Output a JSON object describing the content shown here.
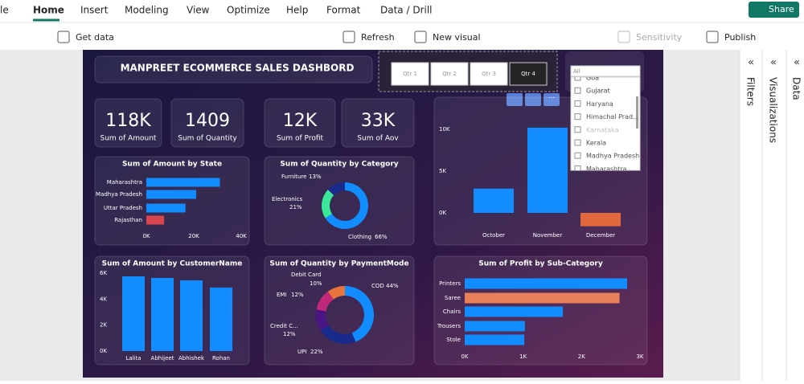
{
  "ribbon": {
    "tabs": [
      "le",
      "Home",
      "Insert",
      "Modeling",
      "View",
      "Optimize",
      "Help",
      "Format",
      "Data / Drill"
    ],
    "share": "Share",
    "commands": [
      "Get data",
      "Refresh",
      "New visual",
      "Sensitivity",
      "Publish"
    ]
  },
  "panes": [
    "Filters",
    "Visualizations",
    "Data"
  ],
  "dashboard": {
    "title": "MANPREET ECOMMERCE SALES DASHBORD",
    "quarter_slicer": [
      "Qtr 1",
      "Qtr 2",
      "Qtr 3",
      "Qtr 4"
    ],
    "state_slicer": {
      "selection": "All",
      "items": [
        "Goa",
        "Gujarat",
        "Haryana",
        "Himachal Prad...",
        "Karnataka",
        "Kerala",
        "Madhya Pradesh",
        "Maharashtra"
      ]
    },
    "cards": [
      {
        "value": "118K",
        "label": "Sum of Amount"
      },
      {
        "value": "1409",
        "label": "Sum of Quantity"
      },
      {
        "value": "12K",
        "label": "Sum of Profit"
      },
      {
        "value": "33K",
        "label": "Sum of Aov"
      }
    ],
    "amount_by_state": {
      "type": "hbar",
      "title": "Sum of Amount by State",
      "categories": [
        "Maharashtra",
        "Madhya Pradesh",
        "Uttar Pradesh",
        "Rajasthan"
      ],
      "values": [
        31000,
        21000,
        16500,
        7500
      ],
      "colors": [
        "#118dff",
        "#118dff",
        "#118dff",
        "#d64550"
      ],
      "xlim": [
        0,
        40000
      ],
      "xticks": [
        {
          "value": 0,
          "label": "0K"
        },
        {
          "value": 20000,
          "label": "20K"
        },
        {
          "value": 40000,
          "label": "40K"
        }
      ]
    },
    "quantity_by_category": {
      "type": "donut",
      "title": "Sum of Quantity by Category",
      "categories": [
        "Clothing",
        "Electronics",
        "Furniture"
      ],
      "values": [
        66,
        21,
        13
      ],
      "value_labels": [
        "66%",
        "21%",
        "13%"
      ],
      "colors": [
        "#118dff",
        "#3be89a",
        "#1a2a8c"
      ]
    },
    "profit_by_month": {
      "type": "vbar",
      "categories": [
        "October",
        "November",
        "December"
      ],
      "values": [
        2900,
        10200,
        -1600
      ],
      "colors": [
        "#118dff",
        "#118dff",
        "#e0683c"
      ],
      "ylim": [
        -2000,
        11000
      ],
      "yticks": [
        {
          "value": 0,
          "label": "0K"
        },
        {
          "value": 5000,
          "label": "5K"
        },
        {
          "value": 10000,
          "label": "10K"
        }
      ]
    },
    "amount_by_customer": {
      "type": "vbar",
      "title": "Sum of Amount by CustomerName",
      "categories": [
        "Lalita",
        "Abhijeet",
        "Abhishek",
        "Rohan"
      ],
      "values": [
        5750,
        5630,
        5440,
        4890
      ],
      "colors": [
        "#118dff",
        "#118dff",
        "#118dff",
        "#118dff"
      ],
      "ylim": [
        0,
        6000
      ],
      "yticks": [
        {
          "value": 0,
          "label": "0K"
        },
        {
          "value": 2000,
          "label": "2K"
        },
        {
          "value": 4000,
          "label": "4K"
        },
        {
          "value": 6000,
          "label": "6K"
        }
      ]
    },
    "quantity_by_payment": {
      "type": "donut",
      "title": "Sum of Quantity by PaymentMode",
      "categories": [
        "COD",
        "UPI",
        "Credit C...",
        "EMI",
        "Debit Card"
      ],
      "values": [
        44,
        22,
        12,
        12,
        10
      ],
      "value_labels": [
        "44%",
        "22%",
        "12%",
        "12%",
        "10%"
      ],
      "colors": [
        "#118dff",
        "#1a2a8c",
        "#4a1585",
        "#c0287a",
        "#e8743b"
      ]
    },
    "profit_by_subcategory": {
      "type": "hbar",
      "title": "Sum of Profit by Sub-Category",
      "categories": [
        "Printers",
        "Saree",
        "Chairs",
        "Trousers",
        "Stole"
      ],
      "values": [
        2780,
        2650,
        1680,
        1030,
        1020
      ],
      "colors": [
        "#118dff",
        "#e8815a",
        "#118dff",
        "#118dff",
        "#118dff"
      ],
      "xlim": [
        0,
        3000
      ],
      "xticks": [
        {
          "value": 0,
          "label": "0K"
        },
        {
          "value": 1000,
          "label": "1K"
        },
        {
          "value": 2000,
          "label": "2K"
        },
        {
          "value": 3000,
          "label": "3K"
        }
      ]
    }
  }
}
